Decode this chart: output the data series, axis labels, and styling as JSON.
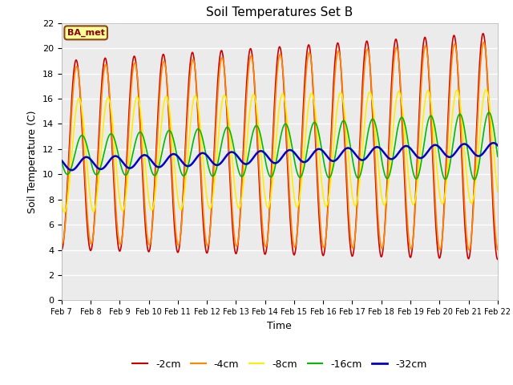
{
  "title": "Soil Temperatures Set B",
  "xlabel": "Time",
  "ylabel": "Soil Temperature (C)",
  "ylim": [
    0,
    22
  ],
  "annotation_text": "BA_met",
  "annotation_bg": "#ffff99",
  "annotation_border": "#8b4513",
  "series": {
    "-2cm": {
      "color": "#cc0000",
      "lw": 1.2
    },
    "-4cm": {
      "color": "#ff8800",
      "lw": 1.2
    },
    "-8cm": {
      "color": "#ffee00",
      "lw": 1.2
    },
    "-16cm": {
      "color": "#00bb00",
      "lw": 1.2
    },
    "-32cm": {
      "color": "#0000cc",
      "lw": 1.8
    }
  },
  "xtick_labels": [
    "Feb 7",
    "Feb 8",
    "Feb 9",
    "Feb 10",
    "Feb 11",
    "Feb 12",
    "Feb 13",
    "Feb 14",
    "Feb 15",
    "Feb 16",
    "Feb 17",
    "Feb 18",
    "Feb 19",
    "Feb 20",
    "Feb 21",
    "Feb 22"
  ],
  "ytick_labels": [
    "0",
    "2",
    "4",
    "6",
    "8",
    "10",
    "12",
    "14",
    "16",
    "18",
    "20",
    "22"
  ],
  "fig_facecolor": "#ffffff",
  "ax_facecolor": "#ebebeb"
}
